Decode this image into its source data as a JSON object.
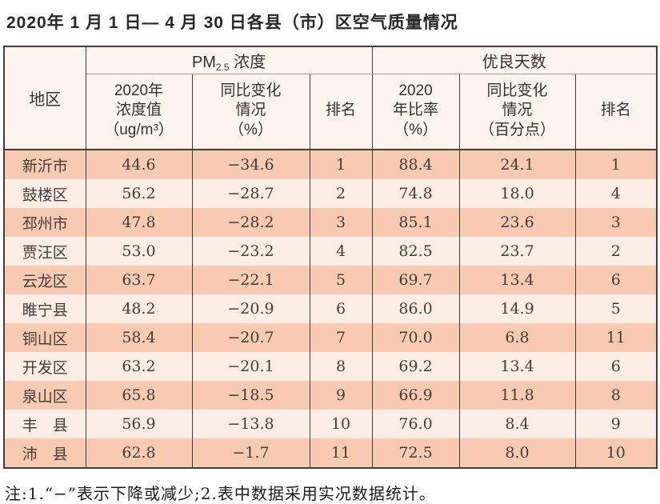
{
  "title": "2020年 1 月 1 日— 4 月 30 日各县（市）区空气质量情况",
  "note": "注:1.“−”表示下降或减少;2.表中数据采用实况数据统计。",
  "colors": {
    "row_odd_bg": "#f8cab2",
    "row_even_bg": "#fceee6",
    "header_bg": "#fdf4ed",
    "border": "#453c36"
  },
  "table": {
    "region_header": "地区",
    "group_pm": {
      "prefix": "PM",
      "sub": "2.5",
      "suffix": " 浓度"
    },
    "group_good": "优良天数",
    "sub_headers": {
      "pm_value": "2020年\n浓度值\n（ug/m³）",
      "pm_change": "同比变化\n情况\n（%）",
      "pm_rank": "排名",
      "good_ratio": "2020\n年比率\n（%）",
      "good_change": "同比变化\n情况\n（百分点）",
      "good_rank": "排名"
    },
    "rows": [
      {
        "region": "新沂市",
        "pm_value": "44.6",
        "pm_change": "−34.6",
        "pm_rank": "1",
        "good_ratio": "88.4",
        "good_change": "24.1",
        "good_rank": "1"
      },
      {
        "region": "鼓楼区",
        "pm_value": "56.2",
        "pm_change": "−28.7",
        "pm_rank": "2",
        "good_ratio": "74.8",
        "good_change": "18.0",
        "good_rank": "4"
      },
      {
        "region": "邳州市",
        "pm_value": "47.8",
        "pm_change": "−28.2",
        "pm_rank": "3",
        "good_ratio": "85.1",
        "good_change": "23.6",
        "good_rank": "3"
      },
      {
        "region": "贾汪区",
        "pm_value": "53.0",
        "pm_change": "−23.2",
        "pm_rank": "4",
        "good_ratio": "82.5",
        "good_change": "23.7",
        "good_rank": "2"
      },
      {
        "region": "云龙区",
        "pm_value": "63.7",
        "pm_change": "−22.1",
        "pm_rank": "5",
        "good_ratio": "69.7",
        "good_change": "13.4",
        "good_rank": "6"
      },
      {
        "region": "睢宁县",
        "pm_value": "48.2",
        "pm_change": "−20.9",
        "pm_rank": "6",
        "good_ratio": "86.0",
        "good_change": "14.9",
        "good_rank": "5"
      },
      {
        "region": "铜山区",
        "pm_value": "58.4",
        "pm_change": "−20.7",
        "pm_rank": "7",
        "good_ratio": "70.0",
        "good_change": "6.8",
        "good_rank": "11"
      },
      {
        "region": "开发区",
        "pm_value": "63.2",
        "pm_change": "−20.1",
        "pm_rank": "8",
        "good_ratio": "69.2",
        "good_change": "13.4",
        "good_rank": "6"
      },
      {
        "region": "泉山区",
        "pm_value": "65.8",
        "pm_change": "−18.5",
        "pm_rank": "9",
        "good_ratio": "66.9",
        "good_change": "11.8",
        "good_rank": "8"
      },
      {
        "region": "丰　县",
        "pm_value": "56.9",
        "pm_change": "−13.8",
        "pm_rank": "10",
        "good_ratio": "76.0",
        "good_change": "8.4",
        "good_rank": "9"
      },
      {
        "region": "沛　县",
        "pm_value": "62.8",
        "pm_change": "−1.7",
        "pm_rank": "11",
        "good_ratio": "72.5",
        "good_change": "8.0",
        "good_rank": "10"
      }
    ]
  }
}
